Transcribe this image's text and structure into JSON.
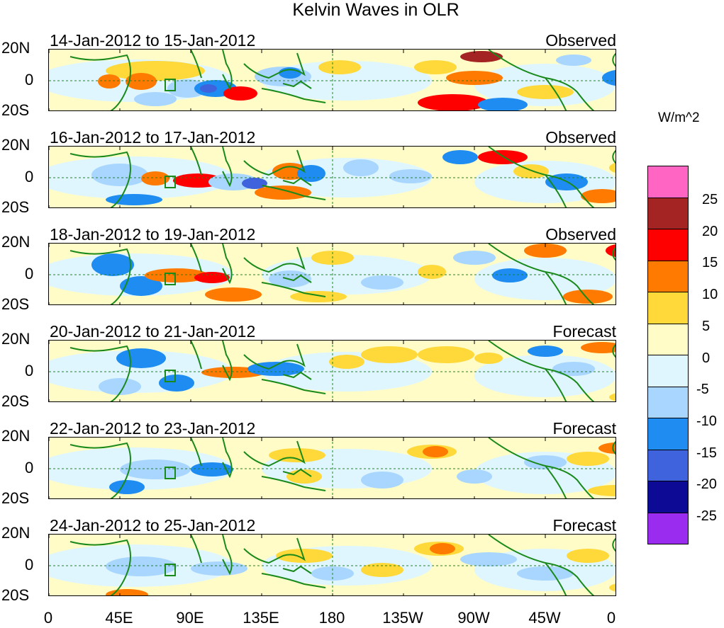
{
  "title": "Kelvin Waves in OLR",
  "units": "W/m^2",
  "panels": [
    {
      "period": "14-Jan-2012 to 15-Jan-2012",
      "type": "Observed"
    },
    {
      "period": "16-Jan-2012 to 17-Jan-2012",
      "type": "Observed"
    },
    {
      "period": "18-Jan-2012 to 19-Jan-2012",
      "type": "Observed"
    },
    {
      "period": "20-Jan-2012 to 21-Jan-2012",
      "type": "Forecast"
    },
    {
      "period": "22-Jan-2012 to 23-Jan-2012",
      "type": "Forecast"
    },
    {
      "period": "24-Jan-2012 to 25-Jan-2012",
      "type": "Forecast"
    }
  ],
  "lat_labels": [
    "20N",
    "0",
    "20S"
  ],
  "lon_labels": [
    "0",
    "45E",
    "90E",
    "135E",
    "180",
    "135W",
    "90W",
    "45W",
    "0"
  ],
  "colorbar": {
    "labels": [
      "25",
      "20",
      "15",
      "10",
      "5",
      "0",
      "-5",
      "-10",
      "-15",
      "-20",
      "-25"
    ],
    "colors": [
      "#ff66c4",
      "#a42323",
      "#ff0000",
      "#ff7a00",
      "#ffd83a",
      "#fffcc8",
      "#dff6ff",
      "#a9d6ff",
      "#1e8cf0",
      "#3f63dc",
      "#0d0b96",
      "#9a2cf0"
    ]
  }
}
